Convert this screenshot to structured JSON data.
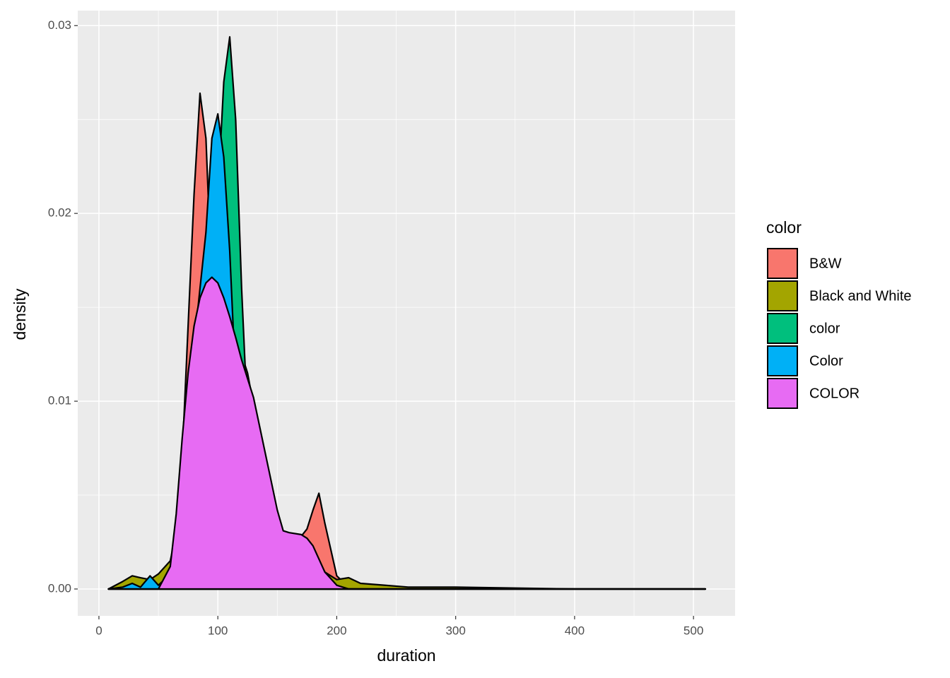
{
  "chart_data": {
    "type": "area",
    "x_label": "duration",
    "y_label": "density",
    "legend_title": "color",
    "legend_position": "right",
    "x": [
      8,
      20,
      28,
      35,
      43,
      50,
      60,
      65,
      70,
      75,
      80,
      85,
      90,
      95,
      100,
      105,
      110,
      115,
      120,
      125,
      130,
      140,
      150,
      155,
      160,
      170,
      175,
      180,
      185,
      190,
      200,
      210,
      220,
      240,
      260,
      300,
      400,
      510
    ],
    "series": [
      {
        "name": "B&W",
        "color": "#F8766D",
        "values": [
          0,
          0,
          0,
          0,
          0,
          0.0002,
          0.001,
          0.003,
          0.007,
          0.014,
          0.021,
          0.0264,
          0.024,
          0.016,
          0.01,
          0.007,
          0.006,
          0.005,
          0.005,
          0.0045,
          0.004,
          0.003,
          0.0025,
          0.0025,
          0.0026,
          0.0028,
          0.0032,
          0.0042,
          0.0051,
          0.0035,
          0.0007,
          0.0001,
          0,
          0,
          0,
          0,
          0,
          0
        ]
      },
      {
        "name": "Black and White",
        "color": "#A3A500",
        "values": [
          0,
          0.0004,
          0.0007,
          0.0006,
          0.0005,
          0.0008,
          0.0015,
          0.003,
          0.006,
          0.009,
          0.012,
          0.014,
          0.015,
          0.0155,
          0.0155,
          0.015,
          0.0145,
          0.0135,
          0.0125,
          0.0115,
          0.0098,
          0.0065,
          0.0035,
          0.003,
          0.0029,
          0.0028,
          0.0027,
          0.0022,
          0.0015,
          0.0009,
          0.0005,
          0.0006,
          0.0003,
          0.0002,
          0.0001,
          0.0001,
          0,
          0
        ]
      },
      {
        "name": "color",
        "color": "#00BF7D",
        "values": [
          0,
          0,
          0,
          0,
          0,
          0,
          0.0002,
          0.001,
          0.003,
          0.006,
          0.009,
          0.012,
          0.014,
          0.016,
          0.021,
          0.027,
          0.0294,
          0.025,
          0.016,
          0.009,
          0.005,
          0.002,
          0.0008,
          0.0005,
          0.0003,
          0.0001,
          0,
          0,
          0,
          0,
          0,
          0,
          0,
          0,
          0,
          0,
          0,
          0
        ]
      },
      {
        "name": "Color",
        "color": "#00B0F6",
        "values": [
          0,
          0.0001,
          0.0003,
          0.0001,
          0.0007,
          0.0002,
          0.0008,
          0.002,
          0.005,
          0.009,
          0.013,
          0.016,
          0.019,
          0.024,
          0.0253,
          0.023,
          0.018,
          0.011,
          0.006,
          0.003,
          0.0015,
          0.0005,
          0.0002,
          0.0001,
          0,
          0,
          0,
          0,
          0,
          0,
          0,
          0,
          0,
          0,
          0,
          0,
          0,
          0
        ]
      },
      {
        "name": "COLOR",
        "color": "#E76BF3",
        "values": [
          0,
          0,
          0,
          0,
          0,
          0,
          0.0012,
          0.004,
          0.008,
          0.0115,
          0.014,
          0.0155,
          0.0163,
          0.0166,
          0.0163,
          0.0155,
          0.0145,
          0.0134,
          0.0122,
          0.0112,
          0.0102,
          0.0072,
          0.0042,
          0.0031,
          0.003,
          0.0029,
          0.0027,
          0.0023,
          0.0016,
          0.0009,
          0.0002,
          0,
          0,
          0,
          0,
          0,
          0,
          0
        ]
      }
    ],
    "xlim": [
      -17.8,
      535
    ],
    "xticks": [
      0,
      100,
      200,
      300,
      400,
      500
    ],
    "ylim": [
      -0.00143,
      0.0308
    ],
    "yticks": [
      {
        "value": 0,
        "label": "0.00"
      },
      {
        "value": 0.01,
        "label": "0.01"
      },
      {
        "value": 0.02,
        "label": "0.02"
      },
      {
        "value": 0.03,
        "label": "0.03"
      }
    ],
    "grid": true,
    "minor_grid": true
  }
}
